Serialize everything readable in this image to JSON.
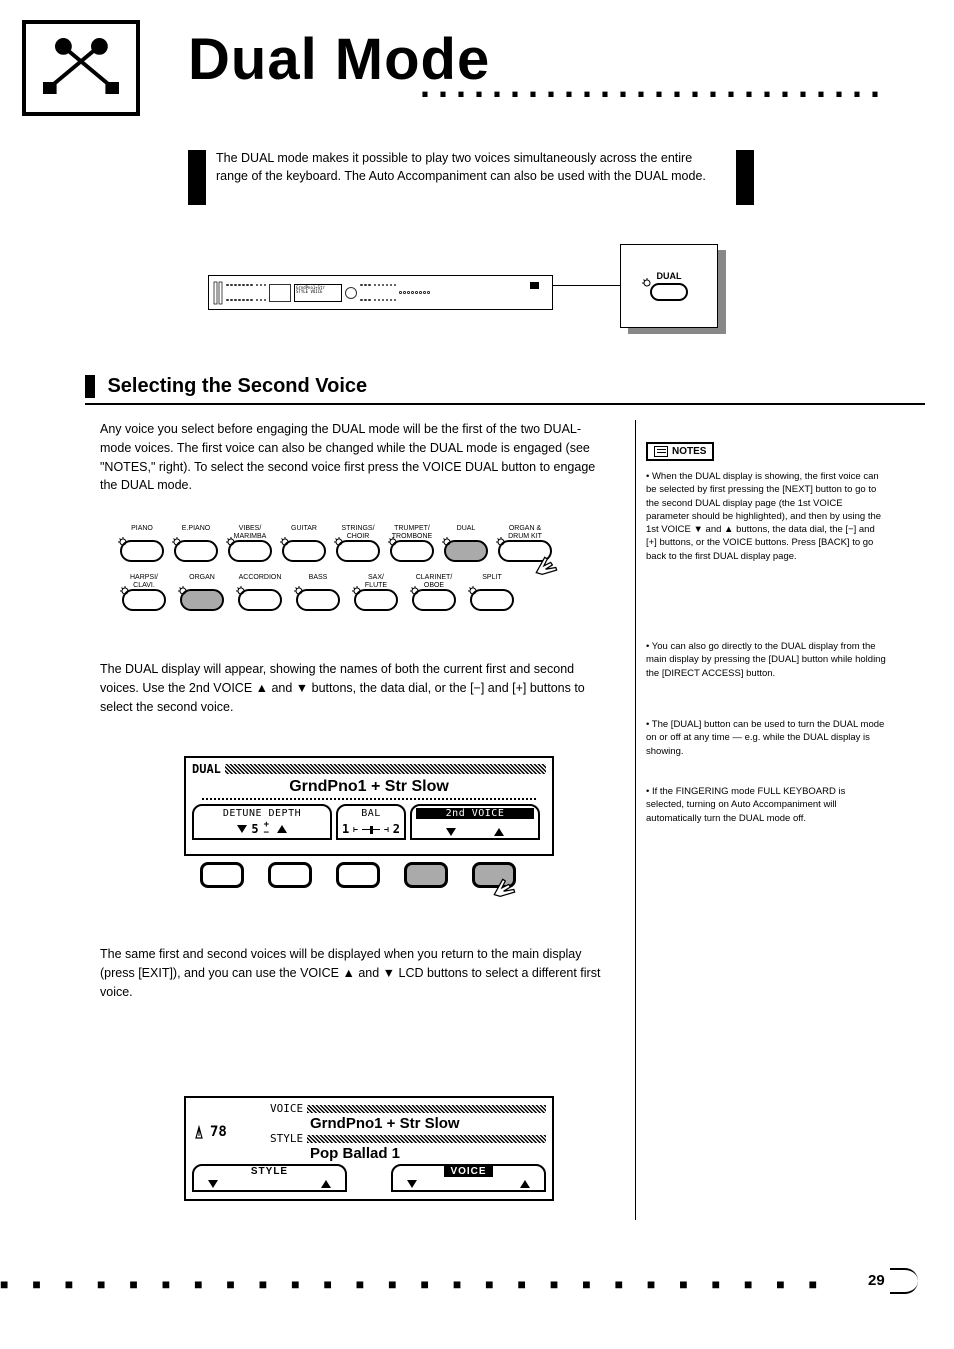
{
  "header": {
    "title": "Dual Mode"
  },
  "intro": {
    "text": "The DUAL mode makes it possible to play two voices simultaneously across the entire range of the keyboard. The Auto Accompaniment can also be used with the DUAL mode."
  },
  "callout": {
    "label": "DUAL"
  },
  "section": {
    "title": "Selecting the Second Voice"
  },
  "body": {
    "p1": "Any voice you select before engaging the DUAL mode will be the first of the two DUAL-mode voices. The first voice can also be changed while the DUAL mode is engaged (see \"NOTES,\" right). To select the second voice first press the VOICE DUAL button to engage the DUAL mode.",
    "p2": "The DUAL display will appear, showing the names of both the current first and second voices. Use the 2nd VOICE ▲ and ▼ buttons, the data dial, or the [−] and [+] buttons to select the second voice.",
    "p3": "The same first and second voices will be displayed when you return to the main display (press [EXIT]), and you can use the VOICE ▲ and ▼ LCD buttons to select a different first voice."
  },
  "notes": {
    "label": "NOTES",
    "n1": "• When the DUAL display is showing, the first voice can be selected by first pressing the [NEXT] button to go to the second DUAL display page (the 1st VOICE parameter should be highlighted), and then by using the 1st VOICE ▼ and ▲ buttons, the data dial, the [−] and [+] buttons, or the VOICE buttons. Press [BACK] to go back to the first DUAL display page.",
    "n2": "• You can also go directly to the DUAL display from the main display by pressing the [DUAL] button while holding the [DIRECT ACCESS] button.",
    "n3": "• The [DUAL] button can be used to turn the DUAL mode on or off at any time — e.g. while the DUAL display is showing.",
    "n4": "• If the FINGERING mode FULL KEYBOARD is selected, turning on Auto Accompaniment will automatically turn the DUAL mode off."
  },
  "voice_buttons": {
    "row1": [
      "PIANO",
      "E.PIANO",
      "VIBES/\nMARIMBA",
      "GUITAR",
      "STRINGS/\nCHOIR",
      "TRUMPET/\nTROMBONE",
      "DUAL",
      "ORGAN &\nDRUM KIT"
    ],
    "row2": [
      "HARPSI/\nCLAVI.",
      "ORGAN",
      "ACCORDION",
      "BASS",
      "SAX/\nFLUTE",
      "CLARINET/\nOBOE",
      "SPLIT"
    ],
    "shaded_row1_index": 6,
    "shaded_row2_index": 1
  },
  "lcd_dual": {
    "header": "DUAL",
    "title": "GrndPno1 + Str Slow",
    "tab1_top": "DETUNE DEPTH",
    "tab1_bottom_value": "5",
    "tab2_top": "BAL",
    "tab2_left": "1",
    "tab2_right": "2",
    "tab3_top": "2nd VOICE"
  },
  "lcd_main": {
    "tempo_label": "",
    "tempo_value": "78",
    "voice_label": "VOICE",
    "voice_value": "GrndPno1 + Str Slow",
    "style_label": "STYLE",
    "style_value": "Pop Ballad 1",
    "tab_left": "STYLE",
    "tab_right": "VOICE"
  },
  "soft_shaded_indices": [
    3,
    4
  ],
  "footer": {
    "page_number": "29"
  },
  "colors": {
    "shaded": "#aaaaaa",
    "shadow": "#888888"
  }
}
